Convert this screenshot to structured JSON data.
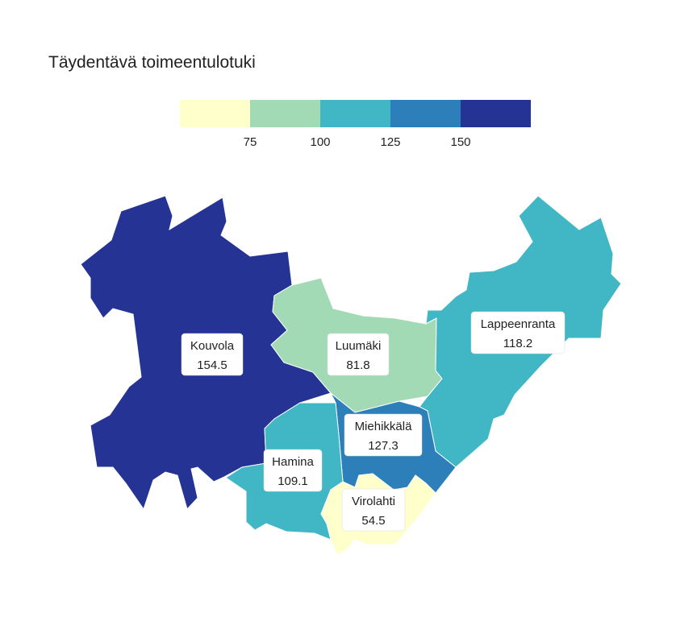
{
  "title": "Täydentävä toimeentulotuki",
  "legend": {
    "colors": [
      "#ffffcc",
      "#a1dab4",
      "#41b6c4",
      "#2c7fb8",
      "#253494"
    ],
    "breaks": [
      "75",
      "100",
      "125",
      "150"
    ]
  },
  "regions": [
    {
      "name": "Kouvola",
      "value": "154.5",
      "color": "#253494"
    },
    {
      "name": "Luumäki",
      "value": "81.8",
      "color": "#a1dab4"
    },
    {
      "name": "Lappeenranta",
      "value": "118.2",
      "color": "#41b6c4"
    },
    {
      "name": "Miehikkälä",
      "value": "127.3",
      "color": "#2c7fb8"
    },
    {
      "name": "Hamina",
      "value": "109.1",
      "color": "#41b6c4"
    },
    {
      "name": "Virolahti",
      "value": "54.5",
      "color": "#ffffcc"
    }
  ]
}
